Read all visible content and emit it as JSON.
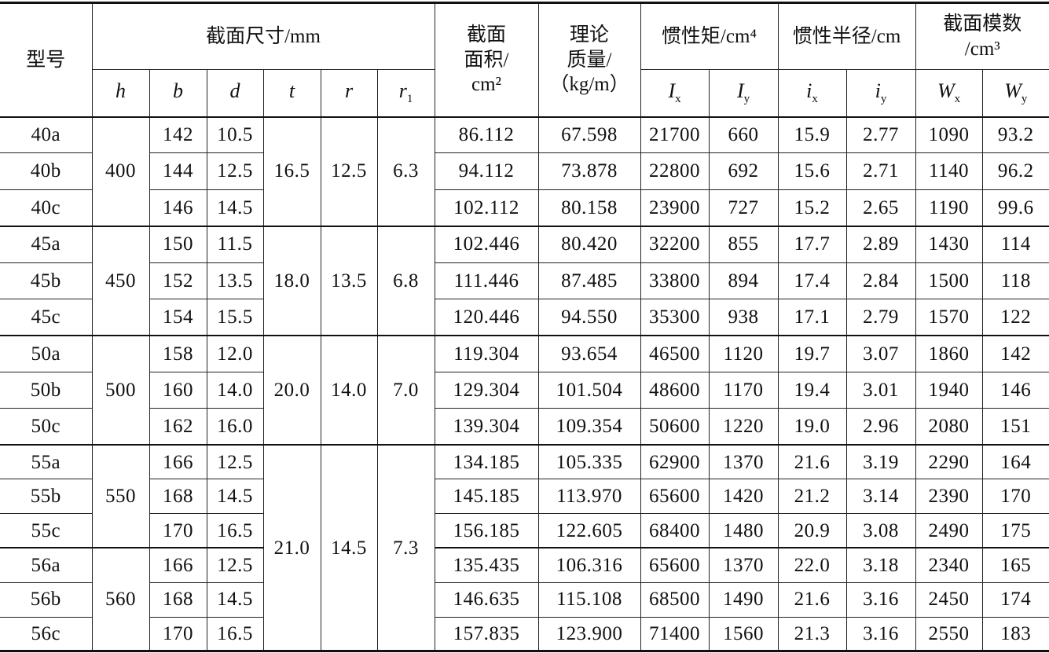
{
  "header": {
    "model": "型号",
    "section_dims": "截面尺寸/mm",
    "dims": [
      {
        "sym": "h",
        "sub": ""
      },
      {
        "sym": "b",
        "sub": ""
      },
      {
        "sym": "d",
        "sub": ""
      },
      {
        "sym": "t",
        "sub": ""
      },
      {
        "sym": "r",
        "sub": ""
      },
      {
        "sym": "r",
        "sub": "1"
      }
    ],
    "area": [
      "截面",
      "面积/",
      "cm²"
    ],
    "mass": [
      "理论",
      "质量/",
      "（kg/m）"
    ],
    "inertia": "惯性矩/cm⁴",
    "radius": "惯性半径/cm",
    "modulus": [
      "截面模数",
      "/cm³"
    ],
    "props": [
      {
        "sym": "I",
        "sub": "x"
      },
      {
        "sym": "I",
        "sub": "y"
      },
      {
        "sym": "i",
        "sub": "x"
      },
      {
        "sym": "i",
        "sub": "y"
      },
      {
        "sym": "W",
        "sub": "x"
      },
      {
        "sym": "W",
        "sub": "y"
      }
    ]
  },
  "h_groups": [
    "400",
    "450",
    "500",
    "550",
    "560"
  ],
  "trr_groups": [
    {
      "t": "16.5",
      "r": "12.5",
      "r1": "6.3"
    },
    {
      "t": "18.0",
      "r": "13.5",
      "r1": "6.8"
    },
    {
      "t": "20.0",
      "r": "14.0",
      "r1": "7.0"
    },
    {
      "t": "21.0",
      "r": "14.5",
      "r1": "7.3"
    }
  ],
  "rows": [
    [
      "40a",
      "142",
      "10.5",
      "86.112",
      "67.598",
      "21700",
      "660",
      "15.9",
      "2.77",
      "1090",
      "93.2"
    ],
    [
      "40b",
      "144",
      "12.5",
      "94.112",
      "73.878",
      "22800",
      "692",
      "15.6",
      "2.71",
      "1140",
      "96.2"
    ],
    [
      "40c",
      "146",
      "14.5",
      "102.112",
      "80.158",
      "23900",
      "727",
      "15.2",
      "2.65",
      "1190",
      "99.6"
    ],
    [
      "45a",
      "150",
      "11.5",
      "102.446",
      "80.420",
      "32200",
      "855",
      "17.7",
      "2.89",
      "1430",
      "114"
    ],
    [
      "45b",
      "152",
      "13.5",
      "111.446",
      "87.485",
      "33800",
      "894",
      "17.4",
      "2.84",
      "1500",
      "118"
    ],
    [
      "45c",
      "154",
      "15.5",
      "120.446",
      "94.550",
      "35300",
      "938",
      "17.1",
      "2.79",
      "1570",
      "122"
    ],
    [
      "50a",
      "158",
      "12.0",
      "119.304",
      "93.654",
      "46500",
      "1120",
      "19.7",
      "3.07",
      "1860",
      "142"
    ],
    [
      "50b",
      "160",
      "14.0",
      "129.304",
      "101.504",
      "48600",
      "1170",
      "19.4",
      "3.01",
      "1940",
      "146"
    ],
    [
      "50c",
      "162",
      "16.0",
      "139.304",
      "109.354",
      "50600",
      "1220",
      "19.0",
      "2.96",
      "2080",
      "151"
    ],
    [
      "55a",
      "166",
      "12.5",
      "134.185",
      "105.335",
      "62900",
      "1370",
      "21.6",
      "3.19",
      "2290",
      "164"
    ],
    [
      "55b",
      "168",
      "14.5",
      "145.185",
      "113.970",
      "65600",
      "1420",
      "21.2",
      "3.14",
      "2390",
      "170"
    ],
    [
      "55c",
      "170",
      "16.5",
      "156.185",
      "122.605",
      "68400",
      "1480",
      "20.9",
      "3.08",
      "2490",
      "175"
    ],
    [
      "56a",
      "166",
      "12.5",
      "135.435",
      "106.316",
      "65600",
      "1370",
      "22.0",
      "3.18",
      "2340",
      "165"
    ],
    [
      "56b",
      "168",
      "14.5",
      "146.635",
      "115.108",
      "68500",
      "1490",
      "21.6",
      "3.16",
      "2450",
      "174"
    ],
    [
      "56c",
      "170",
      "16.5",
      "157.835",
      "123.900",
      "71400",
      "1560",
      "21.3",
      "3.16",
      "2550",
      "183"
    ]
  ]
}
